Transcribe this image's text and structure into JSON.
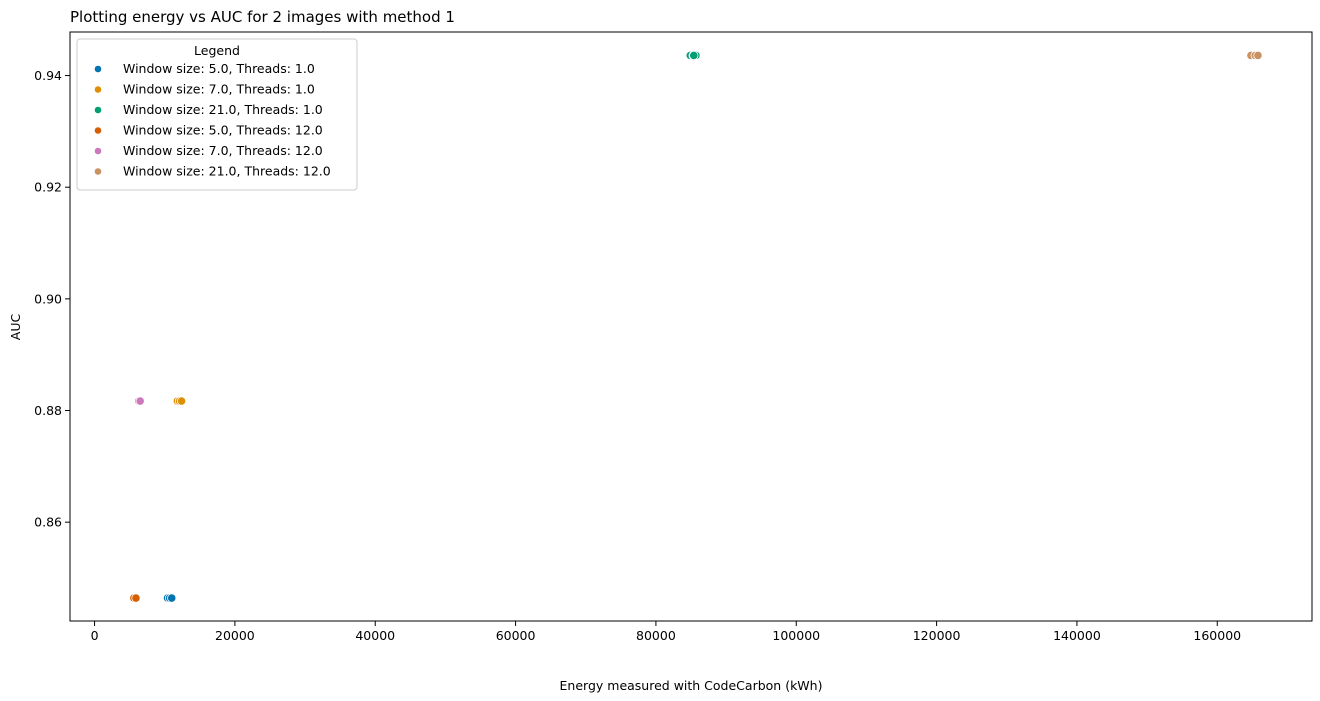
{
  "chart_data": {
    "type": "scatter",
    "title": "Plotting energy vs AUC for 2 images with method 1",
    "xlabel": "Energy measured with CodeCarbon (kWh)",
    "ylabel": "AUC",
    "xlim": [
      -3500,
      173500
    ],
    "ylim": [
      0.8423,
      0.9478
    ],
    "xticks": [
      0,
      20000,
      40000,
      60000,
      80000,
      100000,
      120000,
      140000,
      160000
    ],
    "xtick_labels": [
      "0",
      "20000",
      "40000",
      "60000",
      "80000",
      "100000",
      "120000",
      "140000",
      "160000"
    ],
    "yticks": [
      0.86,
      0.88,
      0.9,
      0.92,
      0.94
    ],
    "ytick_labels": [
      "0.86",
      "0.88",
      "0.90",
      "0.92",
      "0.94"
    ],
    "grid": false,
    "legend": {
      "title": "Legend",
      "placement": "upper left"
    },
    "series": [
      {
        "name": "Window size: 5.0, Threads: 1.0",
        "color": "#0173b2",
        "points": [
          [
            10400,
            0.8464
          ],
          [
            10700,
            0.8464
          ],
          [
            11000,
            0.8464
          ]
        ]
      },
      {
        "name": "Window size: 7.0, Threads: 1.0",
        "color": "#de8f05",
        "points": [
          [
            11800,
            0.8817
          ],
          [
            12100,
            0.8817
          ],
          [
            12400,
            0.8817
          ]
        ]
      },
      {
        "name": "Window size: 21.0, Threads: 1.0",
        "color": "#029e73",
        "points": [
          [
            84900,
            0.9436
          ],
          [
            85300,
            0.9436
          ],
          [
            85700,
            0.9436
          ],
          [
            85400,
            0.9436
          ]
        ]
      },
      {
        "name": "Window size: 5.0, Threads: 12.0",
        "color": "#d55e00",
        "points": [
          [
            5600,
            0.8464
          ],
          [
            5900,
            0.8464
          ]
        ]
      },
      {
        "name": "Window size: 7.0, Threads: 12.0",
        "color": "#cc78bc",
        "points": [
          [
            6300,
            0.8817
          ],
          [
            6500,
            0.8817
          ]
        ]
      },
      {
        "name": "Window size: 21.0, Threads: 12.0",
        "color": "#ca9161",
        "points": [
          [
            164800,
            0.9436
          ],
          [
            165400,
            0.9436
          ],
          [
            165800,
            0.9436
          ]
        ]
      }
    ]
  }
}
